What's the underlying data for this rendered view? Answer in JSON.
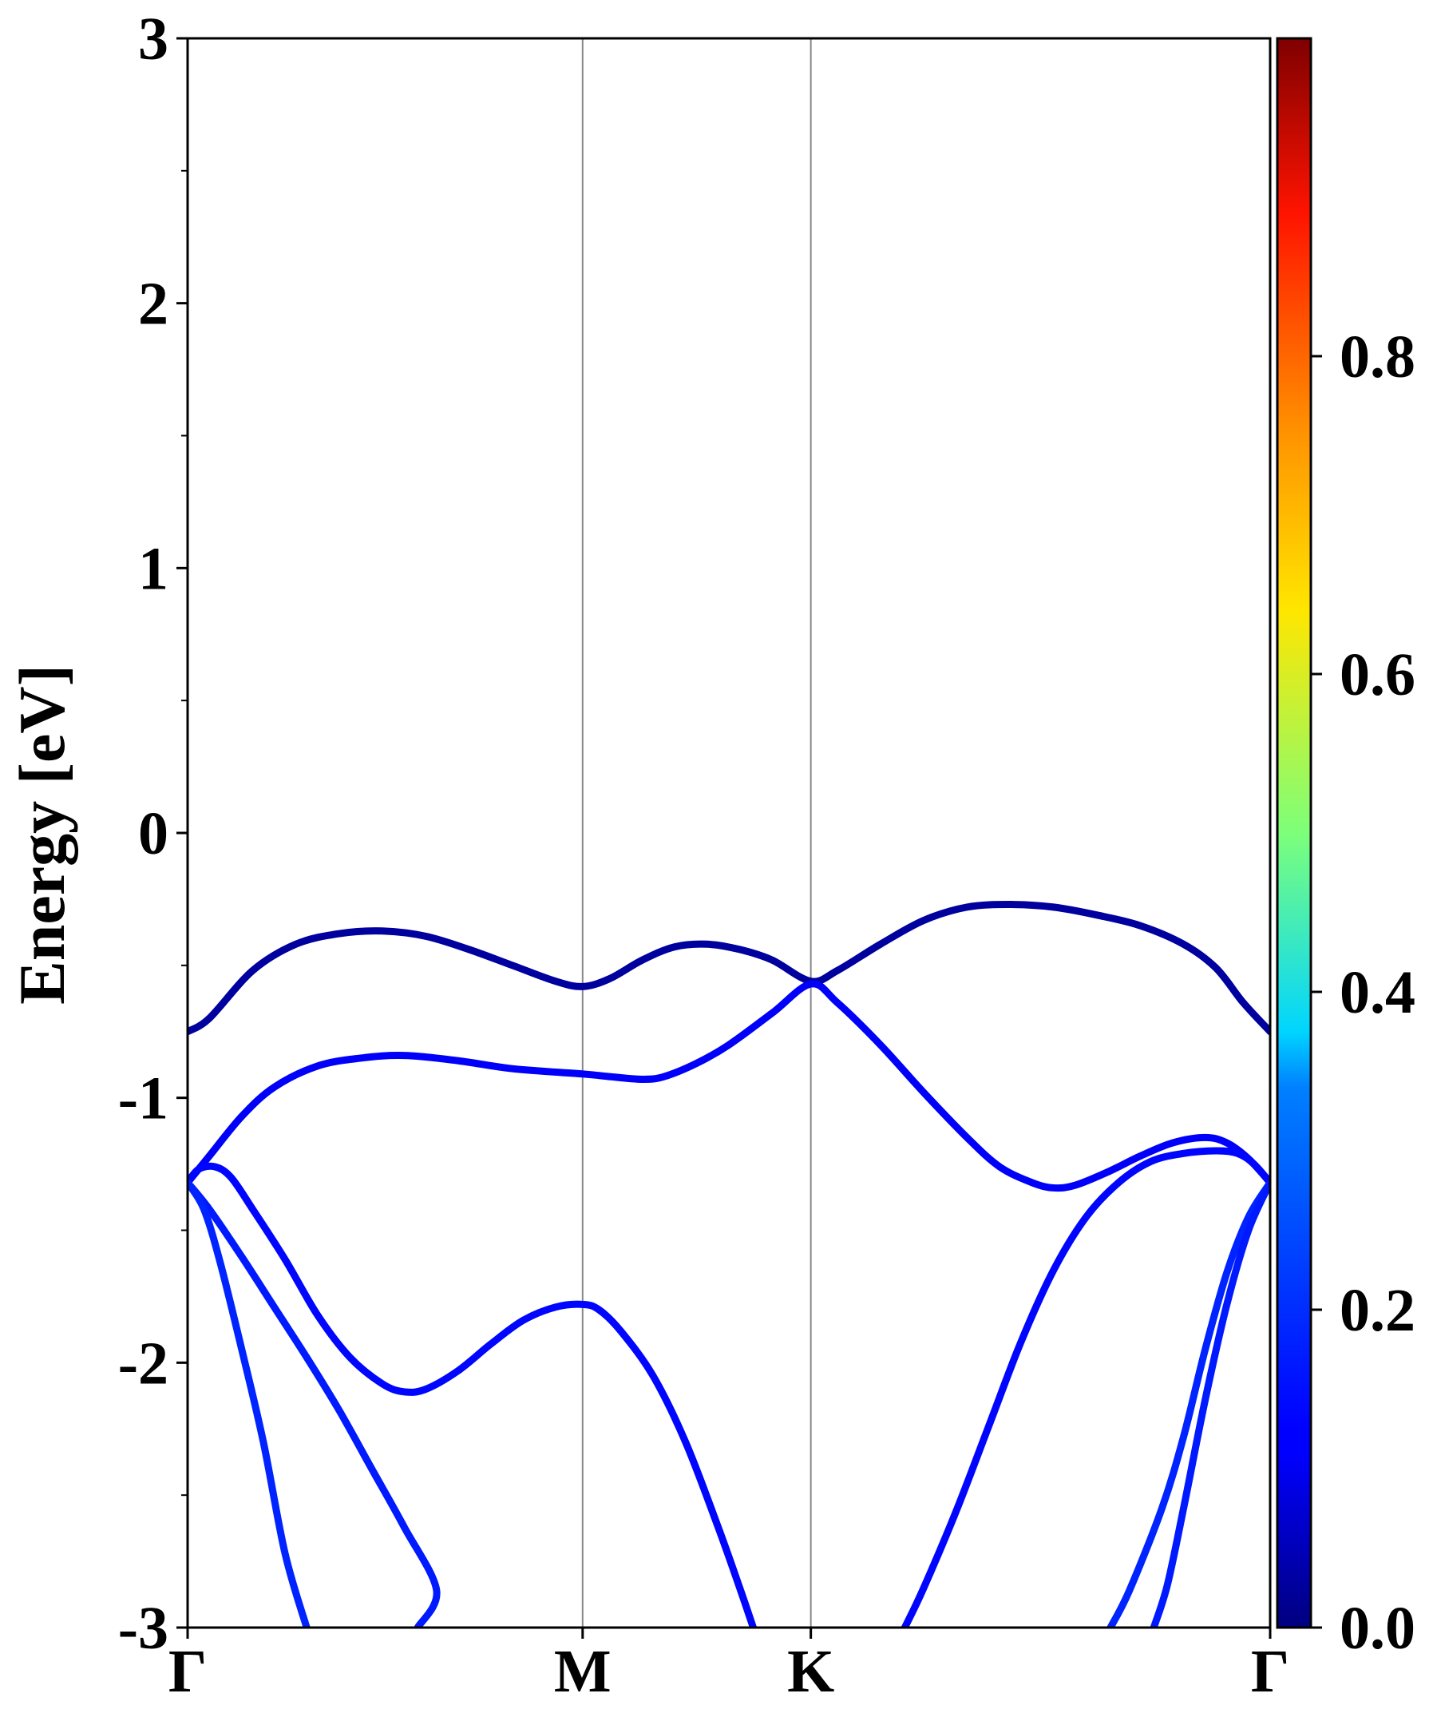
{
  "chart_data": {
    "type": "line",
    "xlabel": "",
    "ylabel": "Energy [eV]",
    "ylim": [
      -3,
      3
    ],
    "yticks": [
      "-3",
      "-2",
      "-1",
      "0",
      "1",
      "2",
      "3"
    ],
    "xticks": [
      "Γ",
      "M",
      "K",
      "Γ"
    ],
    "xlim": [
      0,
      1
    ],
    "kpoint_positions": [
      0,
      0.3649,
      0.5757,
      1.0
    ],
    "colorbar": {
      "colormap": "jet",
      "range": [
        0,
        1
      ],
      "ticks": [
        "0.0",
        "0.2",
        "0.4",
        "0.6",
        "0.8"
      ]
    },
    "series": [
      {
        "weight": 0.03,
        "points": [
          [
            0,
            -0.75
          ],
          [
            0.02,
            -0.7
          ],
          [
            0.06,
            -0.52
          ],
          [
            0.1,
            -0.42
          ],
          [
            0.14,
            -0.38
          ],
          [
            0.18,
            -0.37
          ],
          [
            0.22,
            -0.39
          ],
          [
            0.26,
            -0.44
          ],
          [
            0.3,
            -0.5
          ],
          [
            0.34,
            -0.56
          ],
          [
            0.365,
            -0.58
          ],
          [
            0.39,
            -0.55
          ],
          [
            0.42,
            -0.48
          ],
          [
            0.45,
            -0.43
          ],
          [
            0.48,
            -0.42
          ],
          [
            0.51,
            -0.44
          ],
          [
            0.54,
            -0.48
          ],
          [
            0.5757,
            -0.56
          ],
          [
            0.6,
            -0.52
          ],
          [
            0.64,
            -0.42
          ],
          [
            0.68,
            -0.33
          ],
          [
            0.72,
            -0.28
          ],
          [
            0.76,
            -0.27
          ],
          [
            0.8,
            -0.28
          ],
          [
            0.84,
            -0.31
          ],
          [
            0.88,
            -0.35
          ],
          [
            0.92,
            -0.42
          ],
          [
            0.95,
            -0.51
          ],
          [
            0.975,
            -0.64
          ],
          [
            1.0,
            -0.75
          ]
        ]
      },
      {
        "weight": 0.12,
        "points": [
          [
            0,
            -1.32
          ],
          [
            0.02,
            -1.22
          ],
          [
            0.05,
            -1.07
          ],
          [
            0.08,
            -0.96
          ],
          [
            0.12,
            -0.88
          ],
          [
            0.16,
            -0.85
          ],
          [
            0.2,
            -0.84
          ],
          [
            0.25,
            -0.86
          ],
          [
            0.3,
            -0.89
          ],
          [
            0.365,
            -0.91
          ],
          [
            0.39,
            -0.92
          ],
          [
            0.42,
            -0.93
          ],
          [
            0.44,
            -0.92
          ],
          [
            0.47,
            -0.87
          ],
          [
            0.5,
            -0.8
          ],
          [
            0.54,
            -0.68
          ],
          [
            0.5757,
            -0.57
          ],
          [
            0.6,
            -0.64
          ],
          [
            0.64,
            -0.8
          ],
          [
            0.68,
            -0.98
          ],
          [
            0.72,
            -1.15
          ],
          [
            0.75,
            -1.26
          ],
          [
            0.78,
            -1.32
          ],
          [
            0.8,
            -1.34
          ],
          [
            0.82,
            -1.33
          ],
          [
            0.85,
            -1.28
          ],
          [
            0.88,
            -1.22
          ],
          [
            0.91,
            -1.17
          ],
          [
            0.94,
            -1.15
          ],
          [
            0.96,
            -1.17
          ],
          [
            0.98,
            -1.23
          ],
          [
            1.0,
            -1.32
          ]
        ]
      },
      {
        "weight": 0.13,
        "points": [
          [
            0,
            -1.32
          ],
          [
            0.01,
            -1.27
          ],
          [
            0.025,
            -1.26
          ],
          [
            0.04,
            -1.3
          ],
          [
            0.06,
            -1.42
          ],
          [
            0.09,
            -1.61
          ],
          [
            0.12,
            -1.82
          ],
          [
            0.15,
            -1.98
          ],
          [
            0.18,
            -2.08
          ],
          [
            0.2,
            -2.11
          ],
          [
            0.22,
            -2.1
          ],
          [
            0.25,
            -2.03
          ],
          [
            0.28,
            -1.93
          ],
          [
            0.31,
            -1.84
          ],
          [
            0.34,
            -1.79
          ],
          [
            0.365,
            -1.78
          ],
          [
            0.38,
            -1.8
          ],
          [
            0.4,
            -1.88
          ],
          [
            0.43,
            -2.05
          ],
          [
            0.46,
            -2.3
          ],
          [
            0.49,
            -2.62
          ],
          [
            0.51,
            -2.85
          ],
          [
            0.5225,
            -3.0
          ]
        ]
      },
      {
        "weight": 0.15,
        "points": [
          [
            0,
            -1.32
          ],
          [
            0.02,
            -1.42
          ],
          [
            0.05,
            -1.6
          ],
          [
            0.08,
            -1.79
          ],
          [
            0.11,
            -1.98
          ],
          [
            0.14,
            -2.18
          ],
          [
            0.17,
            -2.4
          ],
          [
            0.2,
            -2.62
          ],
          [
            0.23,
            -2.86
          ],
          [
            0.2125,
            -3.0
          ]
        ]
      },
      {
        "weight": 0.16,
        "points": [
          [
            0,
            -1.32
          ],
          [
            0.015,
            -1.42
          ],
          [
            0.03,
            -1.62
          ],
          [
            0.05,
            -1.95
          ],
          [
            0.07,
            -2.3
          ],
          [
            0.09,
            -2.72
          ],
          [
            0.11,
            -3.0
          ]
        ]
      },
      {
        "weight": 0.13,
        "points": [
          [
            0.6625,
            -3.0
          ],
          [
            0.68,
            -2.85
          ],
          [
            0.71,
            -2.56
          ],
          [
            0.74,
            -2.24
          ],
          [
            0.77,
            -1.92
          ],
          [
            0.8,
            -1.65
          ],
          [
            0.83,
            -1.45
          ],
          [
            0.86,
            -1.32
          ],
          [
            0.89,
            -1.24
          ],
          [
            0.92,
            -1.21
          ],
          [
            0.95,
            -1.2
          ],
          [
            0.97,
            -1.21
          ],
          [
            0.985,
            -1.25
          ],
          [
            1.0,
            -1.32
          ]
        ]
      },
      {
        "weight": 0.16,
        "points": [
          [
            0.8525,
            -3.0
          ],
          [
            0.87,
            -2.86
          ],
          [
            0.9,
            -2.55
          ],
          [
            0.92,
            -2.28
          ],
          [
            0.94,
            -1.95
          ],
          [
            0.96,
            -1.66
          ],
          [
            0.98,
            -1.45
          ],
          [
            1.0,
            -1.32
          ]
        ]
      },
      {
        "weight": 0.15,
        "points": [
          [
            0.8925,
            -3.0
          ],
          [
            0.905,
            -2.84
          ],
          [
            0.92,
            -2.55
          ],
          [
            0.94,
            -2.14
          ],
          [
            0.96,
            -1.78
          ],
          [
            0.98,
            -1.5
          ],
          [
            1.0,
            -1.32
          ]
        ]
      }
    ]
  }
}
